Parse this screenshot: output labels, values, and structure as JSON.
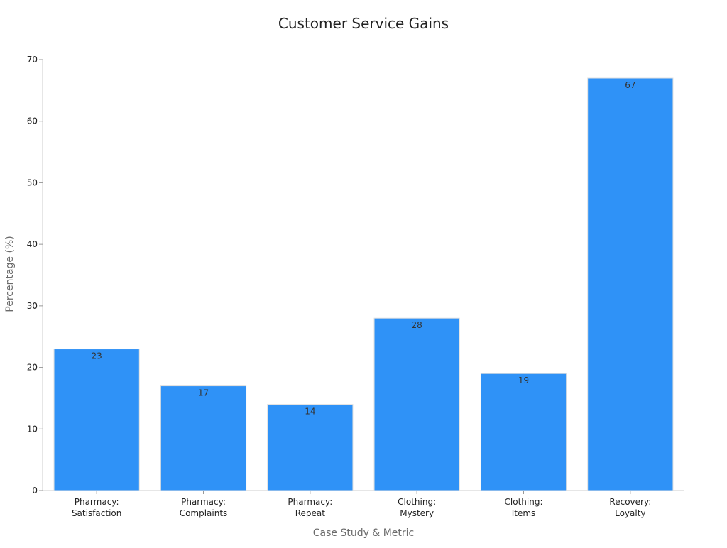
{
  "chart_data": {
    "type": "bar",
    "title": "Customer Service Gains",
    "xlabel": "Case Study & Metric",
    "ylabel": "Percentage (%)",
    "categories": [
      [
        "Pharmacy:",
        "Satisfaction"
      ],
      [
        "Pharmacy:",
        "Complaints"
      ],
      [
        "Pharmacy:",
        "Repeat"
      ],
      [
        "Clothing:",
        "Mystery"
      ],
      [
        "Clothing:",
        "Items"
      ],
      [
        "Recovery:",
        "Loyalty"
      ]
    ],
    "values": [
      23,
      17,
      14,
      28,
      19,
      67
    ],
    "ylim": [
      0,
      70
    ],
    "yticks": [
      0,
      10,
      20,
      30,
      40,
      50,
      60,
      70
    ],
    "grid": false,
    "legend": "none",
    "bar_color": "#2f92f7",
    "bar_edge_color": "#e0e0e0"
  }
}
